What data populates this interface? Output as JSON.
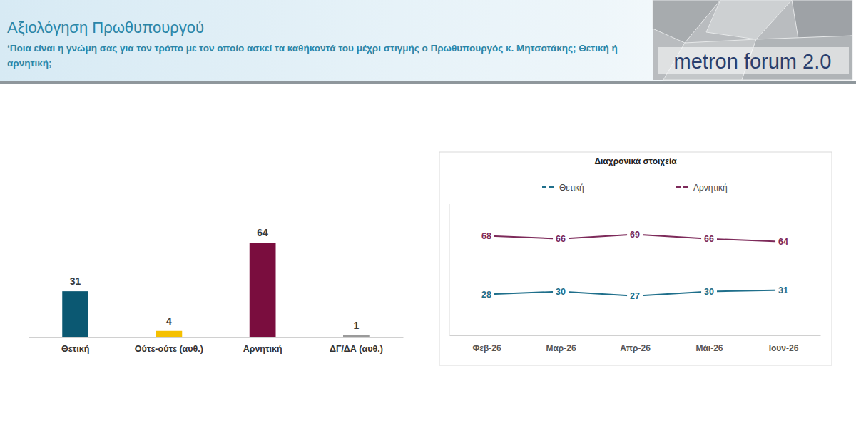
{
  "header": {
    "title": "Αξιολόγηση Πρωθυπουργού",
    "subtitle": "‘Ποια είναι η γνώμη σας για τον τρόπο με τον οποίο ασκεί τα καθήκοντά του μέχρι στιγμής ο Πρωθυπουργός κ. Μητσοτάκης; Θετική ή αρνητική;",
    "logo_text": "metron forum 2.0"
  },
  "chart_data": [
    {
      "type": "bar",
      "categories": [
        "Θετική",
        "Ούτε-ούτε (αυθ.)",
        "Αρνητική",
        "ΔΓ/ΔΑ (αυθ.)"
      ],
      "values": [
        31,
        4,
        64,
        1
      ],
      "colors": [
        "#0b5872",
        "#f5c000",
        "#7a0d3e",
        "#9a9a9a"
      ],
      "ylim": [
        0,
        70
      ],
      "yticks": [],
      "data_labels": true,
      "tick_labels": "x",
      "grid": false
    },
    {
      "type": "line",
      "title": "Διαχρονικά στοιχεία",
      "categories": [
        "Φεβ-26",
        "Μαρ-26",
        "Απρ-26",
        "Μάι-26",
        "Ιουν-26"
      ],
      "series": [
        {
          "name": "Θετική",
          "color": "#1f6f8b",
          "values": [
            28,
            30,
            27,
            30,
            31
          ]
        },
        {
          "name": "Αρνητική",
          "color": "#7d2a5a",
          "values": [
            68,
            66,
            69,
            66,
            64
          ]
        }
      ],
      "ylim": [
        0,
        90
      ],
      "yticks": [],
      "data_labels": true,
      "tick_labels": "x",
      "legend": "top",
      "grid": false,
      "marker": "none",
      "line_style": "solid"
    }
  ]
}
